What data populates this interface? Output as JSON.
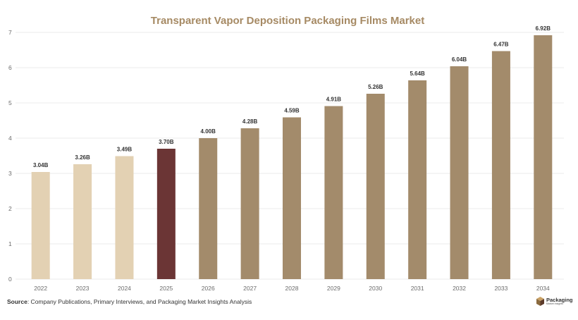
{
  "colors": {
    "title": "#a68a64",
    "historical": "#e3d1b3",
    "current": "#6b3535",
    "forecast": "#a38b6b",
    "grid": "#ebebeb"
  },
  "footer": {
    "source_label": "Source",
    "source_text": ": Company Publications, Primary Interviews, and Packaging Market Insights Analysis",
    "logo_name": "Packaging",
    "logo_sub": "Market Insights",
    "logo_icon": "box-icon"
  },
  "chart_data": {
    "type": "bar",
    "title": "Transparent Vapor Deposition Packaging Films Market",
    "xlabel": "",
    "ylabel": "",
    "ylim": [
      0,
      7
    ],
    "yticks": [
      0,
      1,
      2,
      3,
      4,
      5,
      6,
      7
    ],
    "grid": true,
    "categories": [
      "2022",
      "2023",
      "2024",
      "2025",
      "2026",
      "2027",
      "2028",
      "2029",
      "2030",
      "2031",
      "2032",
      "2033",
      "2034"
    ],
    "values": [
      3.04,
      3.26,
      3.49,
      3.7,
      4.0,
      4.28,
      4.59,
      4.91,
      5.26,
      5.64,
      6.04,
      6.47,
      6.92
    ],
    "value_labels": [
      "3.04B",
      "3.26B",
      "3.49B",
      "3.70B",
      "4.00B",
      "4.28B",
      "4.59B",
      "4.91B",
      "5.26B",
      "5.64B",
      "6.04B",
      "6.47B",
      "6.92B"
    ],
    "bar_roles": [
      "historical",
      "historical",
      "historical",
      "current",
      "forecast",
      "forecast",
      "forecast",
      "forecast",
      "forecast",
      "forecast",
      "forecast",
      "forecast",
      "forecast"
    ]
  }
}
